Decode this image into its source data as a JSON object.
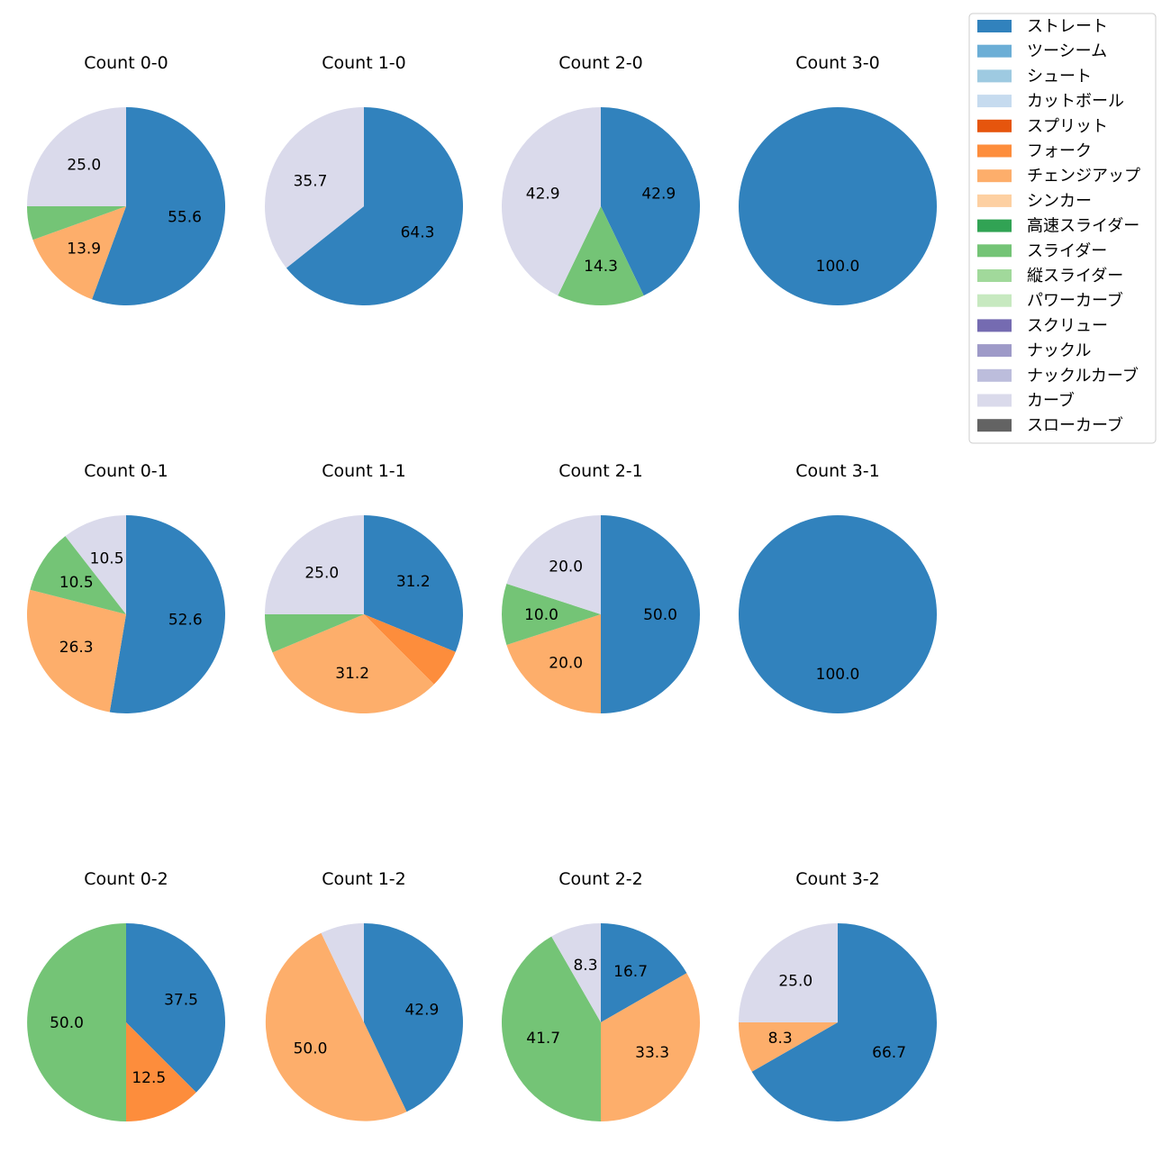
{
  "legend": {
    "entries": [
      {
        "name": "ストレート",
        "color": "#3182bd"
      },
      {
        "name": "ツーシーム",
        "color": "#6baed6"
      },
      {
        "name": "シュート",
        "color": "#9ecae1"
      },
      {
        "name": "カットボール",
        "color": "#c6dbef"
      },
      {
        "name": "スプリット",
        "color": "#e6550d"
      },
      {
        "name": "フォーク",
        "color": "#fd8d3c"
      },
      {
        "name": "チェンジアップ",
        "color": "#fdae6b"
      },
      {
        "name": "シンカー",
        "color": "#fdd0a2"
      },
      {
        "name": "高速スライダー",
        "color": "#31a354"
      },
      {
        "name": "スライダー",
        "color": "#74c476"
      },
      {
        "name": "縦スライダー",
        "color": "#a1d99b"
      },
      {
        "name": "パワーカーブ",
        "color": "#c7e9c0"
      },
      {
        "name": "スクリュー",
        "color": "#756bb1"
      },
      {
        "name": "ナックル",
        "color": "#9e9ac8"
      },
      {
        "name": "ナックルカーブ",
        "color": "#bcbddc"
      },
      {
        "name": "カーブ",
        "color": "#dadaeb"
      },
      {
        "name": "スローカーブ",
        "color": "#636363"
      }
    ]
  },
  "chart_data": [
    {
      "type": "pie",
      "title": "Count 0-0",
      "slices": [
        {
          "category": "ストレート",
          "value": 55.6,
          "label": "55.6"
        },
        {
          "category": "チェンジアップ",
          "value": 13.9,
          "label": "13.9"
        },
        {
          "category": "スライダー",
          "value": 5.5,
          "label": ""
        },
        {
          "category": "カーブ",
          "value": 25.0,
          "label": "25.0"
        }
      ]
    },
    {
      "type": "pie",
      "title": "Count 1-0",
      "slices": [
        {
          "category": "ストレート",
          "value": 64.3,
          "label": "64.3"
        },
        {
          "category": "カーブ",
          "value": 35.7,
          "label": "35.7"
        }
      ]
    },
    {
      "type": "pie",
      "title": "Count 2-0",
      "slices": [
        {
          "category": "ストレート",
          "value": 42.9,
          "label": "42.9"
        },
        {
          "category": "スライダー",
          "value": 14.3,
          "label": "14.3"
        },
        {
          "category": "カーブ",
          "value": 42.9,
          "label": "42.9"
        }
      ]
    },
    {
      "type": "pie",
      "title": "Count 3-0",
      "slices": [
        {
          "category": "ストレート",
          "value": 100.0,
          "label": "100.0"
        }
      ]
    },
    {
      "type": "pie",
      "title": "Count 0-1",
      "slices": [
        {
          "category": "ストレート",
          "value": 52.6,
          "label": "52.6"
        },
        {
          "category": "チェンジアップ",
          "value": 26.3,
          "label": "26.3"
        },
        {
          "category": "スライダー",
          "value": 10.5,
          "label": "10.5"
        },
        {
          "category": "カーブ",
          "value": 10.5,
          "label": "10.5"
        }
      ]
    },
    {
      "type": "pie",
      "title": "Count 1-1",
      "slices": [
        {
          "category": "ストレート",
          "value": 31.2,
          "label": "31.2"
        },
        {
          "category": "フォーク",
          "value": 6.3,
          "label": ""
        },
        {
          "category": "チェンジアップ",
          "value": 31.2,
          "label": "31.2"
        },
        {
          "category": "スライダー",
          "value": 6.3,
          "label": ""
        },
        {
          "category": "カーブ",
          "value": 25.0,
          "label": "25.0"
        }
      ]
    },
    {
      "type": "pie",
      "title": "Count 2-1",
      "slices": [
        {
          "category": "ストレート",
          "value": 50.0,
          "label": "50.0"
        },
        {
          "category": "チェンジアップ",
          "value": 20.0,
          "label": "20.0"
        },
        {
          "category": "スライダー",
          "value": 10.0,
          "label": "10.0"
        },
        {
          "category": "カーブ",
          "value": 20.0,
          "label": "20.0"
        }
      ]
    },
    {
      "type": "pie",
      "title": "Count 3-1",
      "slices": [
        {
          "category": "ストレート",
          "value": 100.0,
          "label": "100.0"
        }
      ]
    },
    {
      "type": "pie",
      "title": "Count 0-2",
      "slices": [
        {
          "category": "ストレート",
          "value": 37.5,
          "label": "37.5"
        },
        {
          "category": "フォーク",
          "value": 12.5,
          "label": "12.5"
        },
        {
          "category": "スライダー",
          "value": 50.0,
          "label": "50.0"
        }
      ]
    },
    {
      "type": "pie",
      "title": "Count 1-2",
      "slices": [
        {
          "category": "ストレート",
          "value": 42.9,
          "label": "42.9"
        },
        {
          "category": "チェンジアップ",
          "value": 50.0,
          "label": "50.0"
        },
        {
          "category": "カーブ",
          "value": 7.1,
          "label": ""
        }
      ]
    },
    {
      "type": "pie",
      "title": "Count 2-2",
      "slices": [
        {
          "category": "ストレート",
          "value": 16.7,
          "label": "16.7"
        },
        {
          "category": "チェンジアップ",
          "value": 33.3,
          "label": "33.3"
        },
        {
          "category": "スライダー",
          "value": 41.7,
          "label": "41.7"
        },
        {
          "category": "カーブ",
          "value": 8.3,
          "label": "8.3"
        }
      ]
    },
    {
      "type": "pie",
      "title": "Count 3-2",
      "slices": [
        {
          "category": "ストレート",
          "value": 66.7,
          "label": "66.7"
        },
        {
          "category": "チェンジアップ",
          "value": 8.3,
          "label": "8.3"
        },
        {
          "category": "カーブ",
          "value": 25.0,
          "label": "25.0"
        }
      ]
    }
  ]
}
